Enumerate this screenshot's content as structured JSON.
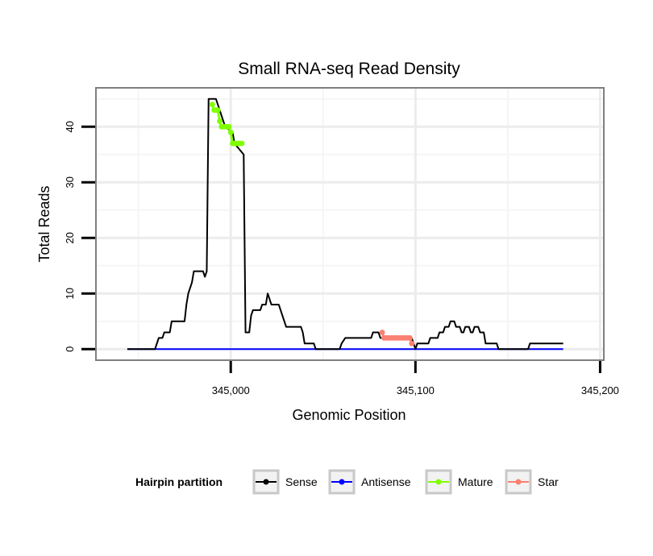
{
  "chart_data": {
    "type": "line",
    "title": "Small RNA-seq Read Density",
    "xlabel": "Genomic Position",
    "ylabel": "Total Reads",
    "xlim": [
      344927,
      345202
    ],
    "ylim": [
      -2,
      47
    ],
    "x_ticks": [
      345000,
      345100,
      345200
    ],
    "x_tick_labels": [
      "345,000",
      "345,100",
      "345,200"
    ],
    "y_ticks": [
      0,
      10,
      20,
      30,
      40
    ],
    "y_tick_labels": [
      "0",
      "10",
      "20",
      "30",
      "40"
    ],
    "grid": true,
    "legend": {
      "title": "Hairpin partition",
      "position": "bottom",
      "items": [
        {
          "label": "Sense",
          "color": "#000000"
        },
        {
          "label": "Antisense",
          "color": "#0000ff"
        },
        {
          "label": "Mature",
          "color": "#7fff00"
        },
        {
          "label": "Star",
          "color": "#fa8072"
        }
      ]
    },
    "series": [
      {
        "name": "Sense",
        "color": "#000000",
        "markers": false,
        "points": [
          [
            344944,
            0
          ],
          [
            344959,
            0
          ],
          [
            344960,
            1
          ],
          [
            344961,
            2
          ],
          [
            344963,
            2
          ],
          [
            344964,
            3
          ],
          [
            344967,
            3
          ],
          [
            344968,
            5
          ],
          [
            344975,
            5
          ],
          [
            344976,
            8
          ],
          [
            344977,
            10
          ],
          [
            344978,
            11
          ],
          [
            344979,
            12
          ],
          [
            344980,
            14
          ],
          [
            344985,
            14
          ],
          [
            344986,
            13
          ],
          [
            344987,
            14
          ],
          [
            344988,
            45
          ],
          [
            344992,
            45
          ],
          [
            344993,
            44
          ],
          [
            344994,
            43
          ],
          [
            344996,
            41
          ],
          [
            344997,
            40
          ],
          [
            345001,
            39
          ],
          [
            345002,
            37
          ],
          [
            345007,
            35
          ],
          [
            345008,
            3
          ],
          [
            345010,
            3
          ],
          [
            345011,
            6
          ],
          [
            345012,
            7
          ],
          [
            345016,
            7
          ],
          [
            345017,
            8
          ],
          [
            345019,
            8
          ],
          [
            345020,
            10
          ],
          [
            345021,
            9
          ],
          [
            345022,
            8
          ],
          [
            345026,
            8
          ],
          [
            345027,
            7
          ],
          [
            345028,
            6
          ],
          [
            345030,
            4
          ],
          [
            345038,
            4
          ],
          [
            345039,
            3
          ],
          [
            345040,
            1
          ],
          [
            345045,
            1
          ],
          [
            345046,
            0
          ],
          [
            345059,
            0
          ],
          [
            345060,
            1
          ],
          [
            345062,
            2
          ],
          [
            345076,
            2
          ],
          [
            345077,
            3
          ],
          [
            345080,
            3
          ],
          [
            345081,
            2
          ],
          [
            345098,
            2
          ],
          [
            345099,
            1
          ],
          [
            345100,
            0
          ],
          [
            345101,
            1
          ],
          [
            345107,
            1
          ],
          [
            345108,
            2
          ],
          [
            345112,
            2
          ],
          [
            345113,
            3
          ],
          [
            345115,
            3
          ],
          [
            345116,
            4
          ],
          [
            345118,
            4
          ],
          [
            345119,
            5
          ],
          [
            345121,
            5
          ],
          [
            345122,
            4
          ],
          [
            345124,
            4
          ],
          [
            345125,
            3
          ],
          [
            345126,
            3
          ],
          [
            345127,
            4
          ],
          [
            345129,
            4
          ],
          [
            345130,
            3
          ],
          [
            345131,
            3
          ],
          [
            345132,
            4
          ],
          [
            345134,
            4
          ],
          [
            345135,
            3
          ],
          [
            345137,
            3
          ],
          [
            345138,
            1
          ],
          [
            345144,
            1
          ],
          [
            345145,
            0
          ],
          [
            345161,
            0
          ],
          [
            345162,
            1
          ],
          [
            345180,
            1
          ]
        ]
      },
      {
        "name": "Antisense",
        "color": "#0000ff",
        "markers": false,
        "points": [
          [
            344944,
            0
          ],
          [
            345180,
            0
          ]
        ]
      },
      {
        "name": "Mature",
        "color": "#7fff00",
        "markers": true,
        "points": [
          [
            344990,
            44
          ],
          [
            344991,
            43
          ],
          [
            344992,
            43
          ],
          [
            344993,
            43
          ],
          [
            344994,
            41
          ],
          [
            344995,
            40
          ],
          [
            344996,
            40
          ],
          [
            344997,
            40
          ],
          [
            344998,
            40
          ],
          [
            344999,
            40
          ],
          [
            345000,
            39
          ],
          [
            345001,
            37
          ],
          [
            345002,
            37
          ],
          [
            345003,
            37
          ],
          [
            345004,
            37
          ],
          [
            345005,
            37
          ],
          [
            345006,
            37
          ]
        ]
      },
      {
        "name": "Star",
        "color": "#fa8072",
        "markers": true,
        "points": [
          [
            345082,
            3
          ],
          [
            345083,
            2
          ],
          [
            345084,
            2
          ],
          [
            345085,
            2
          ],
          [
            345086,
            2
          ],
          [
            345087,
            2
          ],
          [
            345088,
            2
          ],
          [
            345089,
            2
          ],
          [
            345090,
            2
          ],
          [
            345091,
            2
          ],
          [
            345092,
            2
          ],
          [
            345093,
            2
          ],
          [
            345094,
            2
          ],
          [
            345095,
            2
          ],
          [
            345096,
            2
          ],
          [
            345097,
            2
          ],
          [
            345098,
            1
          ]
        ]
      }
    ]
  }
}
